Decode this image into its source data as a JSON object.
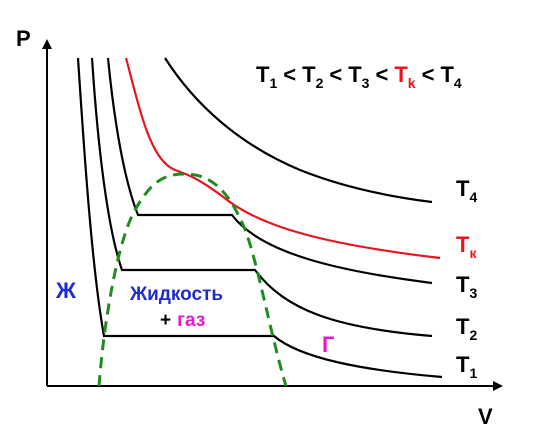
{
  "axes": {
    "y_label": "P",
    "x_label": "V"
  },
  "inequality": [
    {
      "base": "T",
      "sub": "1",
      "color": "#000000"
    },
    {
      "op": "<"
    },
    {
      "base": "T",
      "sub": "2",
      "color": "#000000"
    },
    {
      "op": "<"
    },
    {
      "base": "T",
      "sub": "3",
      "color": "#000000"
    },
    {
      "op": "<"
    },
    {
      "base": "T",
      "sub": "k",
      "color": "#e8141e"
    },
    {
      "op": "<"
    },
    {
      "base": "T",
      "sub": "4",
      "color": "#000000"
    }
  ],
  "isotherms": [
    {
      "base": "T",
      "sub": "4",
      "color": "#000000"
    },
    {
      "base": "T",
      "sub": "к",
      "color": "#e8141e"
    },
    {
      "base": "T",
      "sub": "3",
      "color": "#000000"
    },
    {
      "base": "T",
      "sub": "2",
      "color": "#000000"
    },
    {
      "base": "T",
      "sub": "1",
      "color": "#000000"
    }
  ],
  "regions": {
    "liquid": {
      "text": "Ж",
      "color": "#1f2bd6"
    },
    "mixture_line1": {
      "text": "Жидкость",
      "color": "#1f2bd6"
    },
    "mixture_plus": {
      "text": "+",
      "color": "#000000"
    },
    "mixture_gas": {
      "text": "газ",
      "color": "#e619c8"
    },
    "gas": {
      "text": "Г",
      "color": "#e619c8"
    }
  },
  "colors": {
    "axis": "#000000",
    "critical": "#e8141e",
    "dome": "#1e8c1e",
    "curve": "#000000"
  }
}
